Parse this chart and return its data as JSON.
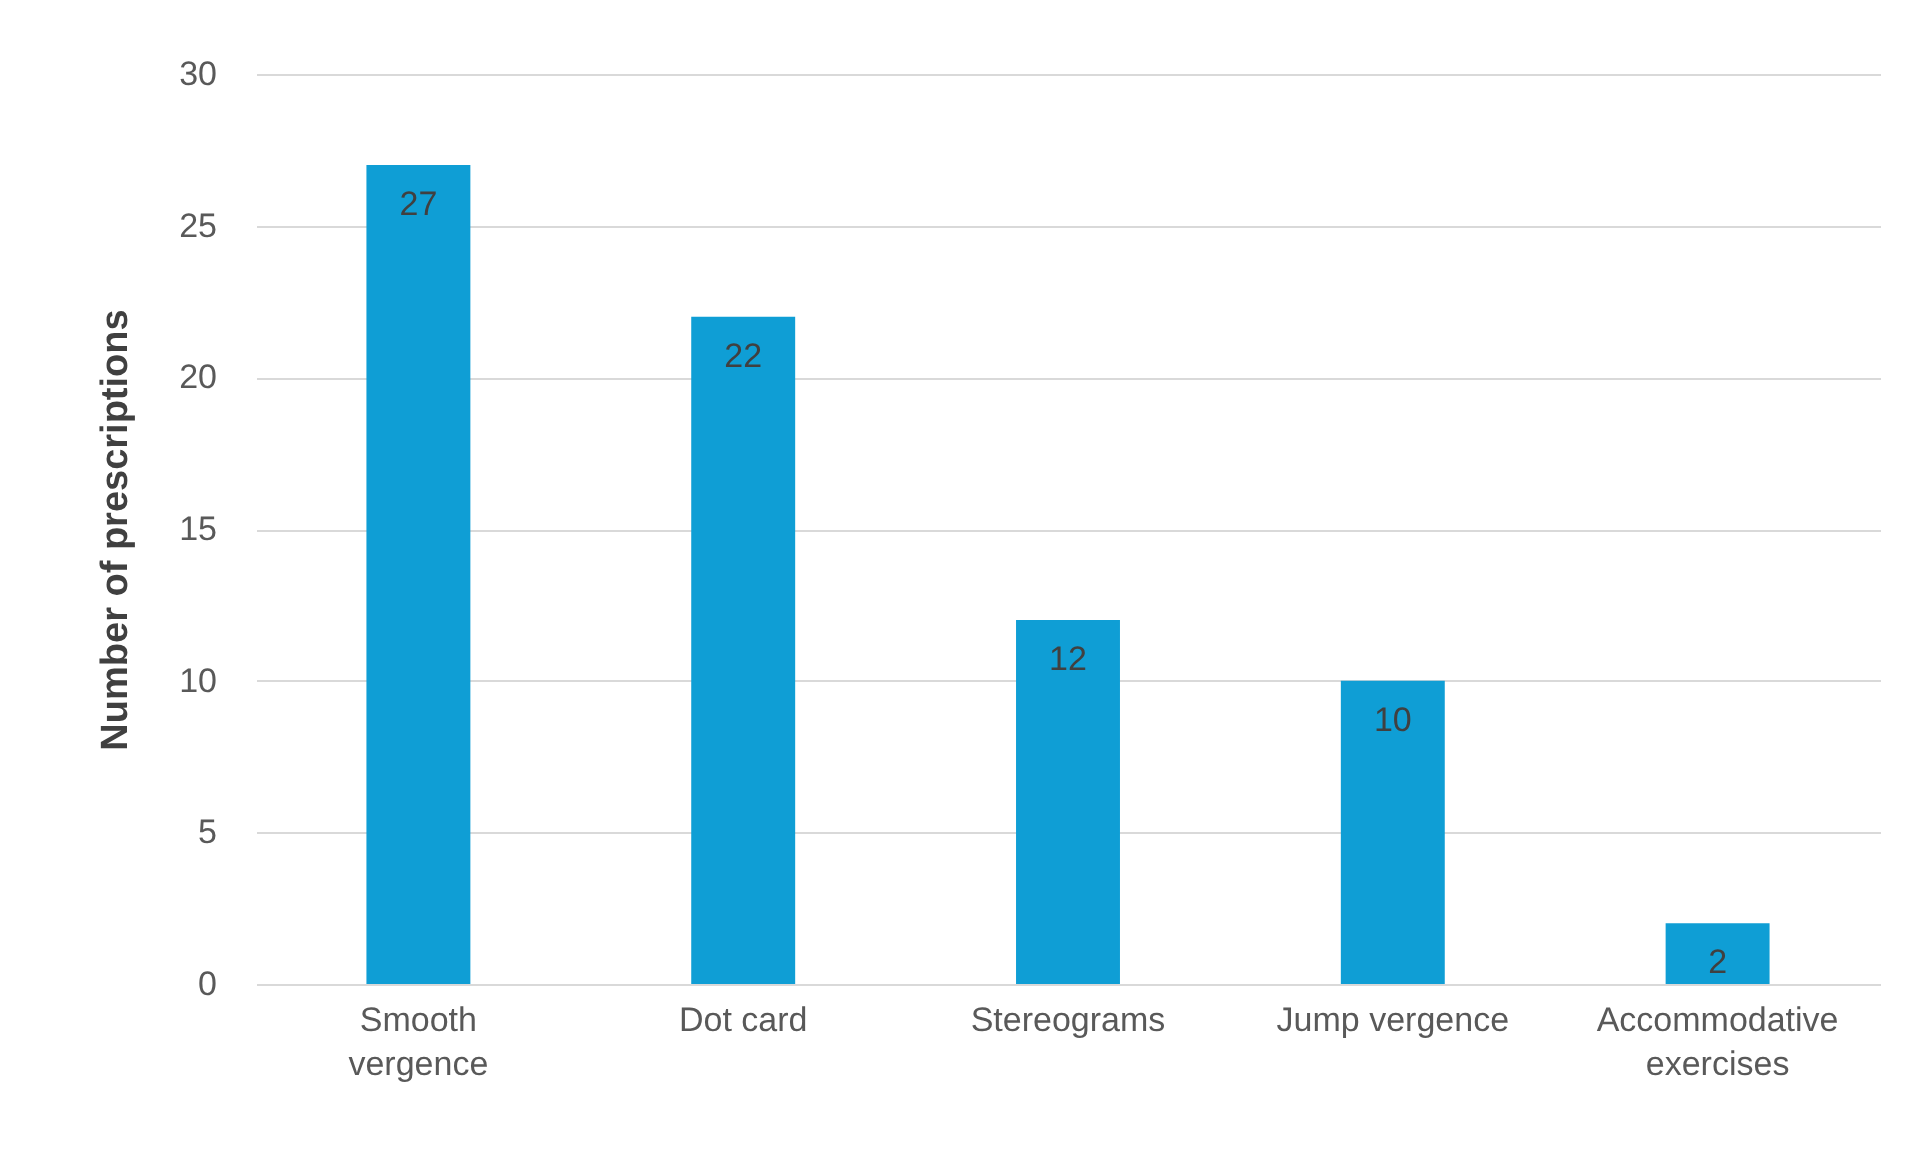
{
  "chart_data": {
    "type": "bar",
    "ylabel": "Number of prescriptions",
    "categories": [
      "Smooth vergence",
      "Dot card",
      "Stereograms",
      "Jump vergence",
      "Accommodative exercises"
    ],
    "values": [
      27,
      22,
      12,
      10,
      2
    ],
    "color": "#0f9ed5",
    "ylim": [
      0,
      30
    ],
    "yticks": [
      0,
      5,
      10,
      15,
      20,
      25,
      30
    ],
    "grid": "y",
    "data_labels": true
  }
}
